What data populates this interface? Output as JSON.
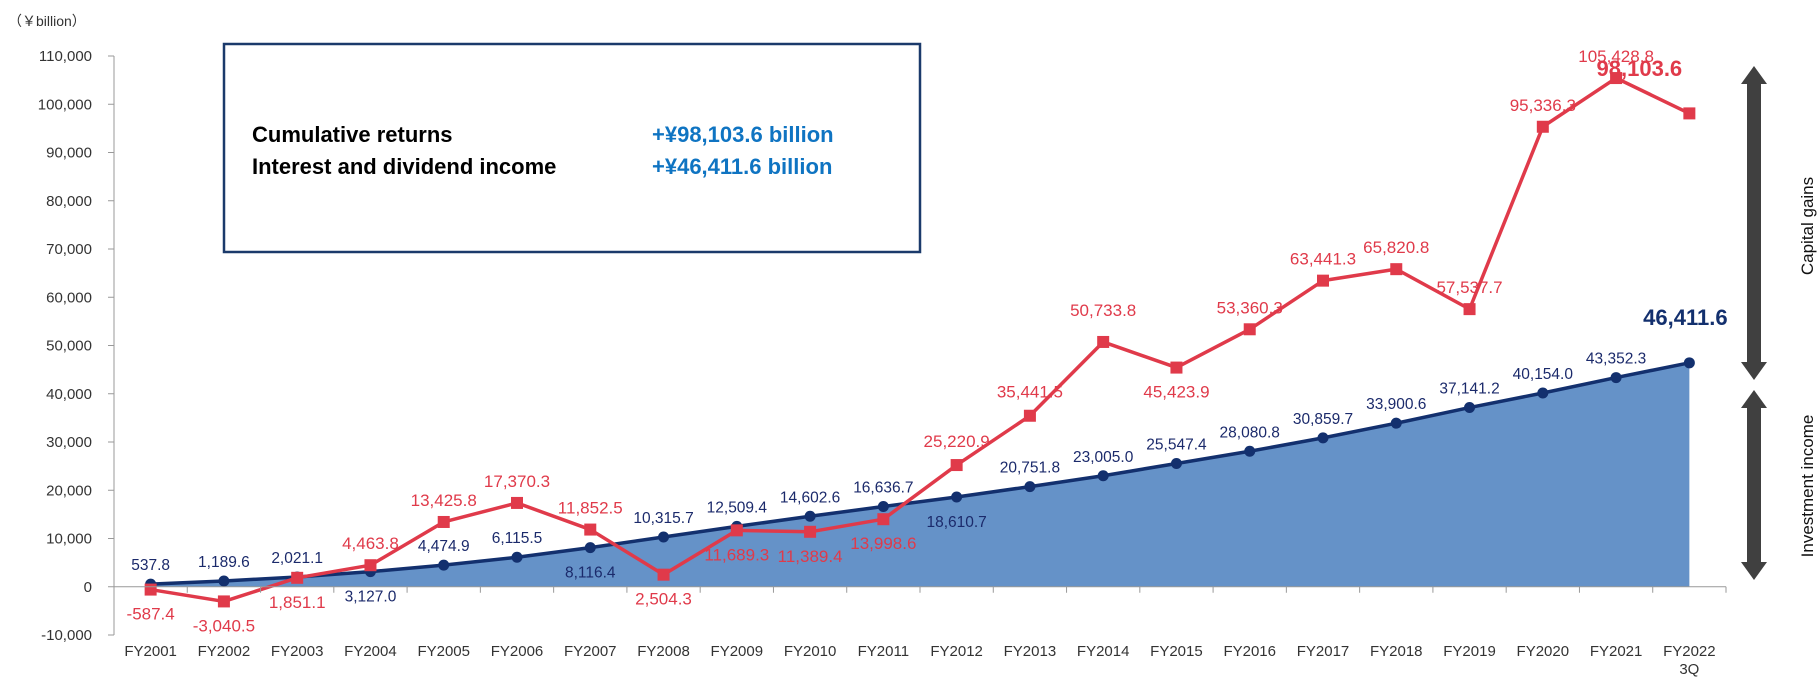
{
  "chart_data": {
    "type": "line",
    "unit_label": "（￥billion）",
    "categories": [
      "FY2001",
      "FY2002",
      "FY2003",
      "FY2004",
      "FY2005",
      "FY2006",
      "FY2007",
      "FY2008",
      "FY2009",
      "FY2010",
      "FY2011",
      "FY2012",
      "FY2013",
      "FY2014",
      "FY2015",
      "FY2016",
      "FY2017",
      "FY2018",
      "FY2019",
      "FY2020",
      "FY2021",
      "FY2022"
    ],
    "last_category_sub": "3Q",
    "ylim": [
      -10000,
      110000
    ],
    "yticks": [
      -10000,
      0,
      10000,
      20000,
      30000,
      40000,
      50000,
      60000,
      70000,
      80000,
      90000,
      100000,
      110000
    ],
    "ytick_labels": [
      "-10,000",
      "0",
      "10,000",
      "20,000",
      "30,000",
      "40,000",
      "50,000",
      "60,000",
      "70,000",
      "80,000",
      "90,000",
      "100,000",
      "110,000"
    ],
    "series": [
      {
        "color": "#13306e",
        "fill": "#6592c8",
        "values": [
          537.8,
          1189.6,
          2021.1,
          3127.0,
          4474.9,
          6115.5,
          8116.4,
          10315.7,
          12509.4,
          14602.6,
          16636.7,
          18610.7,
          20751.8,
          23005.0,
          25547.4,
          28080.8,
          30859.7,
          33900.6,
          37141.2,
          40154.0,
          43352.3,
          46411.6
        ],
        "labels": [
          "537.8",
          "1,189.6",
          "2,021.1",
          "3,127.0",
          "4,474.9",
          "6,115.5",
          "8,116.4",
          "10,315.7",
          "12,509.4",
          "14,602.6",
          "16,636.7",
          "18,610.7",
          "20,751.8",
          "23,005.0",
          "25,547.4",
          "28,080.8",
          "30,859.7",
          "33,900.6",
          "37,141.2",
          "40,154.0",
          "43,352.3",
          "46,411.6"
        ]
      },
      {
        "color": "#e03a4a",
        "values": [
          -587.4,
          -3040.5,
          1851.1,
          4463.8,
          13425.8,
          17370.3,
          11852.5,
          2504.3,
          11689.3,
          11389.4,
          13998.6,
          25220.9,
          35441.5,
          50733.8,
          45423.9,
          53360.3,
          63441.3,
          65820.8,
          57537.7,
          95336.3,
          105428.8,
          98103.6
        ],
        "labels": [
          "-587.4",
          "-3,040.5",
          "1,851.1",
          "4,463.8",
          "13,425.8",
          "17,370.3",
          "11,852.5",
          "2,504.3",
          "11,689.3",
          "11,389.4",
          "13,998.6",
          "25,220.9",
          "35,441.5",
          "50,733.8",
          "45,423.9",
          "53,360.3",
          "63,441.3",
          "65,820.8",
          "57,537.7",
          "95,336.3",
          "105,428.8",
          "98,103.6"
        ]
      }
    ],
    "info_box": {
      "rows": [
        {
          "label": "Cumulative returns",
          "value": "+¥98,103.6 billion"
        },
        {
          "label": "Interest and dividend income",
          "value": "+¥46,411.6 billion"
        }
      ]
    },
    "side_labels": {
      "upper": "Capital gains",
      "lower": "Investment income"
    }
  }
}
